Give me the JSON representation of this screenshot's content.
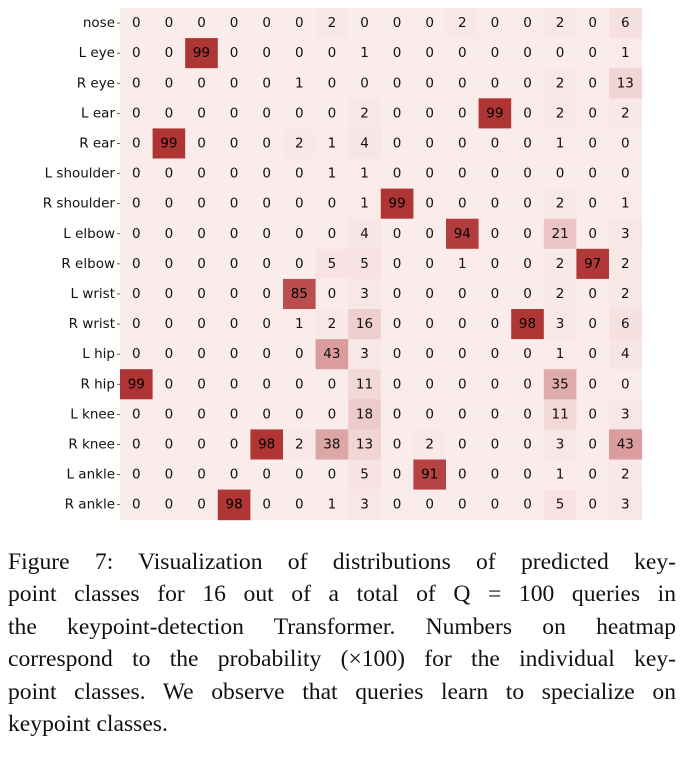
{
  "chart_data": {
    "type": "heatmap",
    "row_labels": [
      "nose",
      "L eye",
      "R eye",
      "L ear",
      "R ear",
      "L shoulder",
      "R shoulder",
      "L elbow",
      "R elbow",
      "L wrist",
      "R wrist",
      "L hip",
      "R hip",
      "L knee",
      "R knee",
      "L ankle",
      "R ankle"
    ],
    "values": [
      [
        0,
        0,
        0,
        0,
        0,
        0,
        2,
        0,
        0,
        0,
        2,
        0,
        0,
        2,
        0,
        6
      ],
      [
        0,
        0,
        99,
        0,
        0,
        0,
        0,
        1,
        0,
        0,
        0,
        0,
        0,
        0,
        0,
        1
      ],
      [
        0,
        0,
        0,
        0,
        0,
        1,
        0,
        0,
        0,
        0,
        0,
        0,
        0,
        2,
        0,
        13
      ],
      [
        0,
        0,
        0,
        0,
        0,
        0,
        0,
        2,
        0,
        0,
        0,
        99,
        0,
        2,
        0,
        2
      ],
      [
        0,
        99,
        0,
        0,
        0,
        2,
        1,
        4,
        0,
        0,
        0,
        0,
        0,
        1,
        0,
        0
      ],
      [
        0,
        0,
        0,
        0,
        0,
        0,
        1,
        1,
        0,
        0,
        0,
        0,
        0,
        0,
        0,
        0
      ],
      [
        0,
        0,
        0,
        0,
        0,
        0,
        0,
        1,
        99,
        0,
        0,
        0,
        0,
        2,
        0,
        1
      ],
      [
        0,
        0,
        0,
        0,
        0,
        0,
        0,
        4,
        0,
        0,
        94,
        0,
        0,
        21,
        0,
        3
      ],
      [
        0,
        0,
        0,
        0,
        0,
        0,
        5,
        5,
        0,
        0,
        1,
        0,
        0,
        2,
        97,
        2
      ],
      [
        0,
        0,
        0,
        0,
        0,
        85,
        0,
        3,
        0,
        0,
        0,
        0,
        0,
        2,
        0,
        2
      ],
      [
        0,
        0,
        0,
        0,
        0,
        1,
        2,
        16,
        0,
        0,
        0,
        0,
        98,
        3,
        0,
        6
      ],
      [
        0,
        0,
        0,
        0,
        0,
        0,
        43,
        3,
        0,
        0,
        0,
        0,
        0,
        1,
        0,
        4
      ],
      [
        99,
        0,
        0,
        0,
        0,
        0,
        0,
        11,
        0,
        0,
        0,
        0,
        0,
        35,
        0,
        0
      ],
      [
        0,
        0,
        0,
        0,
        0,
        0,
        0,
        18,
        0,
        0,
        0,
        0,
        0,
        11,
        0,
        3
      ],
      [
        0,
        0,
        0,
        0,
        98,
        2,
        38,
        13,
        0,
        2,
        0,
        0,
        0,
        3,
        0,
        43
      ],
      [
        0,
        0,
        0,
        0,
        0,
        0,
        0,
        5,
        0,
        91,
        0,
        0,
        0,
        1,
        0,
        2
      ],
      [
        0,
        0,
        0,
        98,
        0,
        0,
        1,
        3,
        0,
        0,
        0,
        0,
        0,
        5,
        0,
        3
      ]
    ],
    "value_range": [
      0,
      100
    ],
    "colormap": {
      "low": "#fbecec",
      "high": "#ae3232"
    },
    "text_colors": {
      "light_cell": "#111111",
      "dark_cell": "#000000"
    }
  },
  "caption": {
    "lines": [
      "Figure 7: Visualization of distributions of predicted key-",
      "point classes for 16 out of a total of Q = 100 queries in",
      "the keypoint-detection Transformer. Numbers on heatmap",
      "correspond to the probability (×100) for the individual key-",
      "point classes. We observe that queries learn to specialize on",
      "keypoint classes."
    ]
  }
}
